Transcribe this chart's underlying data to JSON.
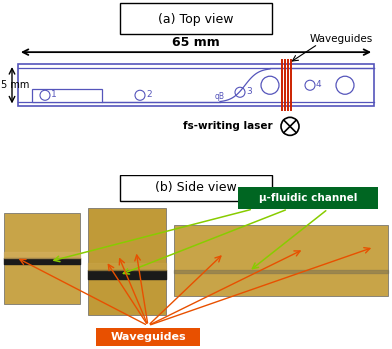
{
  "fig_width": 3.92,
  "fig_height": 3.49,
  "dpi": 100,
  "bg_color": "#ffffff",
  "panel_a_title": "(a) Top view",
  "panel_b_title": "(b) Side view",
  "dim_65mm": "65 mm",
  "dim_5mm": "5 mm",
  "waveguides_label": "Waveguides",
  "fs_laser_label": "fs-writing laser",
  "chip_color": "#5555bb",
  "chip_edge_color": "#888888",
  "red_lines_color": "#cc2200",
  "micro_fluidic_label": "μ-fluidic channel",
  "waveguides_label_b": "Waveguides",
  "img_bg_tan": "#c8a448",
  "img_bg_dark": "#b89030",
  "channel_black": "#1a1a1a",
  "orange_arrow": "#e85000",
  "green_arrow": "#88cc00",
  "green_box": "#006622",
  "orange_box": "#e85000"
}
